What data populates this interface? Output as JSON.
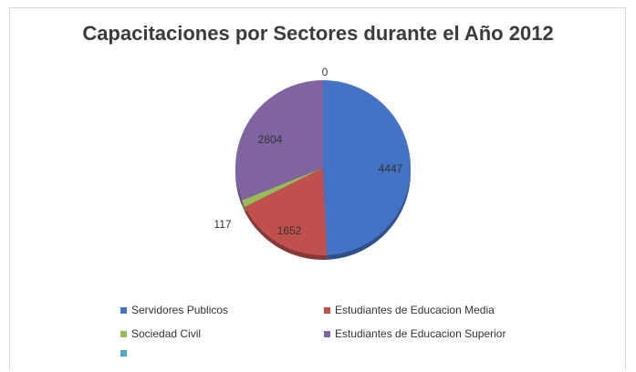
{
  "chart_data": {
    "type": "pie",
    "title": "Capacitaciones  por Sectores durante el Año 2012",
    "slices": [
      {
        "label": "Servidores Publicos",
        "value": 4447,
        "color": "#4472c4",
        "value_label": "4447"
      },
      {
        "label": "Estudiantes de Educacion Media",
        "value": 1652,
        "color": "#c0504d",
        "value_label": "1652"
      },
      {
        "label": "Sociedad Civil",
        "value": 117,
        "color": "#9bbb59",
        "value_label": "117"
      },
      {
        "label": "Estudiantes de Educacion Superior",
        "value": 2804,
        "color": "#8064a2",
        "value_label": "2804"
      },
      {
        "label": "",
        "value": 0,
        "color": "#4bacc6",
        "value_label": "0"
      }
    ],
    "legend_position": "bottom"
  }
}
